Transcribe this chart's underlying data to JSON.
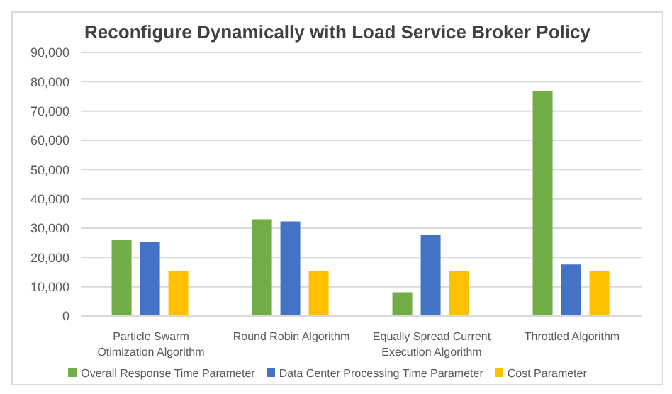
{
  "chart_data": {
    "type": "bar",
    "title": "Reconfigure Dynamically with Load Service Broker Policy",
    "categories": [
      "Particle Swarm Otimization Algorithm",
      "Round Robin Algorithm",
      "Equally Spread Current Execution Algorithm",
      "Throttled Algorithm"
    ],
    "series": [
      {
        "name": "Overall Response Time Parameter",
        "color": "#70ad47",
        "values": [
          26000,
          33000,
          8100,
          76800
        ]
      },
      {
        "name": "Data Center Processing Time Parameter",
        "color": "#4472c4",
        "values": [
          25300,
          32300,
          27800,
          17600
        ]
      },
      {
        "name": "Cost Parameter",
        "color": "#ffc000",
        "values": [
          15300,
          15300,
          15300,
          15300
        ]
      }
    ],
    "ylim": [
      0,
      90000
    ],
    "yticks": [
      0,
      {
        "value": 10000,
        "label": "10,000"
      },
      {
        "value": 20000,
        "label": "20,000"
      },
      {
        "value": 30000,
        "label": "30,000"
      },
      {
        "value": 40000,
        "label": "40,000"
      },
      {
        "value": 50000,
        "label": "50,000"
      },
      {
        "value": 60000,
        "label": "60,000"
      },
      {
        "value": 70000,
        "label": "70,000"
      },
      {
        "value": 80000,
        "label": "80,000"
      },
      {
        "value": 90000,
        "label": "90,000"
      }
    ],
    "grid": "y",
    "legend": "bottom"
  }
}
